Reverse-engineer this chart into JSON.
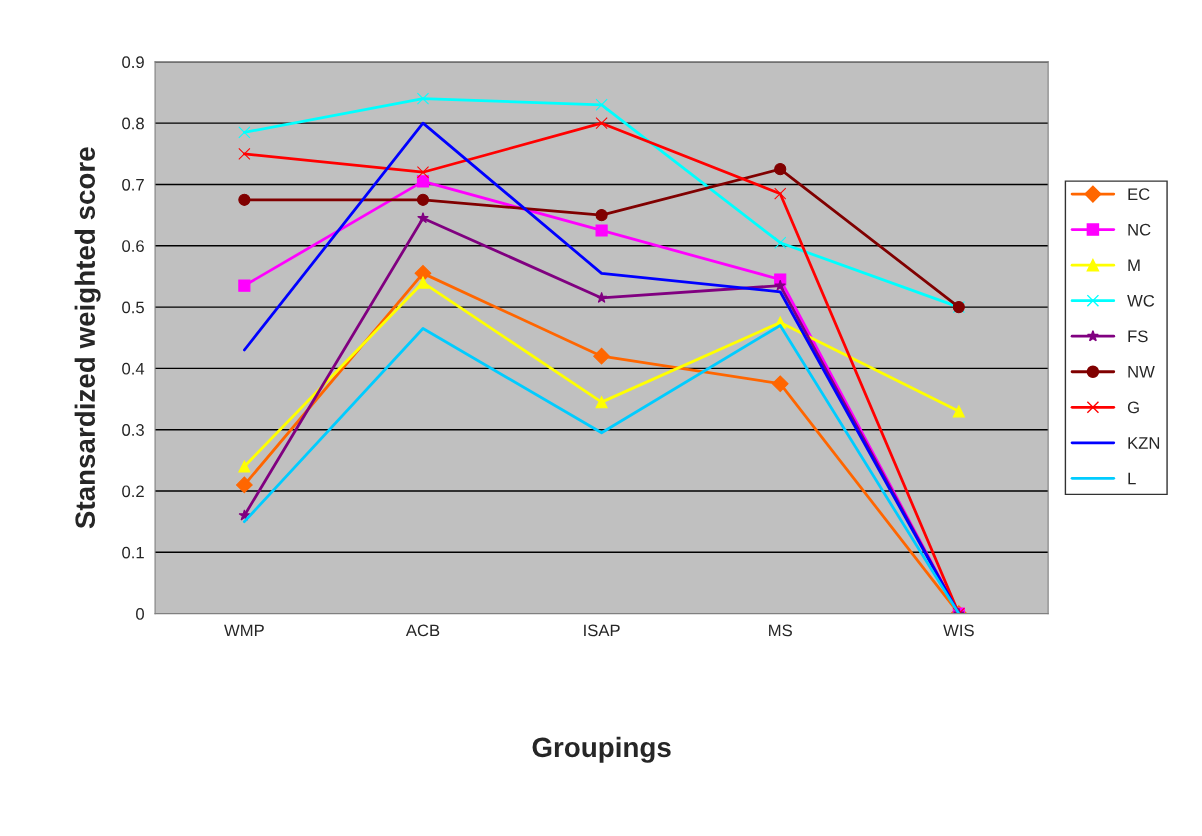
{
  "chart_data": {
    "type": "line",
    "xlabel": "Groupings",
    "ylabel": "Stansardized weighted score",
    "categories": [
      "WMP",
      "ACB",
      "ISAP",
      "MS",
      "WIS"
    ],
    "ylim": [
      0,
      0.9
    ],
    "yticks": [
      0,
      0.1,
      0.2,
      0.3,
      0.4,
      0.5,
      0.6,
      0.7,
      0.8,
      0.9
    ],
    "grid": "y",
    "legend": "right",
    "series": [
      {
        "name": "EC",
        "color": "#ff6600",
        "marker": "diamond",
        "values": [
          0.21,
          0.555,
          0.42,
          0.375,
          0
        ]
      },
      {
        "name": "NC",
        "color": "#ff00ff",
        "marker": "square",
        "values": [
          0.535,
          0.705,
          0.625,
          0.545,
          0
        ]
      },
      {
        "name": "M",
        "color": "#ffff00",
        "marker": "triangle",
        "values": [
          0.24,
          0.54,
          0.345,
          0.475,
          0.33
        ]
      },
      {
        "name": "WC",
        "color": "#00ffff",
        "marker": "cross",
        "values": [
          0.785,
          0.84,
          0.83,
          0.605,
          0.5
        ]
      },
      {
        "name": "FS",
        "color": "#800080",
        "marker": "star",
        "values": [
          0.16,
          0.645,
          0.515,
          0.535,
          0
        ]
      },
      {
        "name": "NW",
        "color": "#800000",
        "marker": "circle",
        "values": [
          0.675,
          0.675,
          0.65,
          0.725,
          0.5
        ]
      },
      {
        "name": "G",
        "color": "#ff0000",
        "marker": "cross",
        "values": [
          0.75,
          0.72,
          0.8,
          0.685,
          0
        ]
      },
      {
        "name": "KZN",
        "color": "#0000ff",
        "marker": "none",
        "values": [
          0.43,
          0.8,
          0.555,
          0.525,
          0
        ]
      },
      {
        "name": "L",
        "color": "#00ccff",
        "marker": "none",
        "values": [
          0.15,
          0.465,
          0.295,
          0.47,
          0
        ]
      }
    ]
  }
}
